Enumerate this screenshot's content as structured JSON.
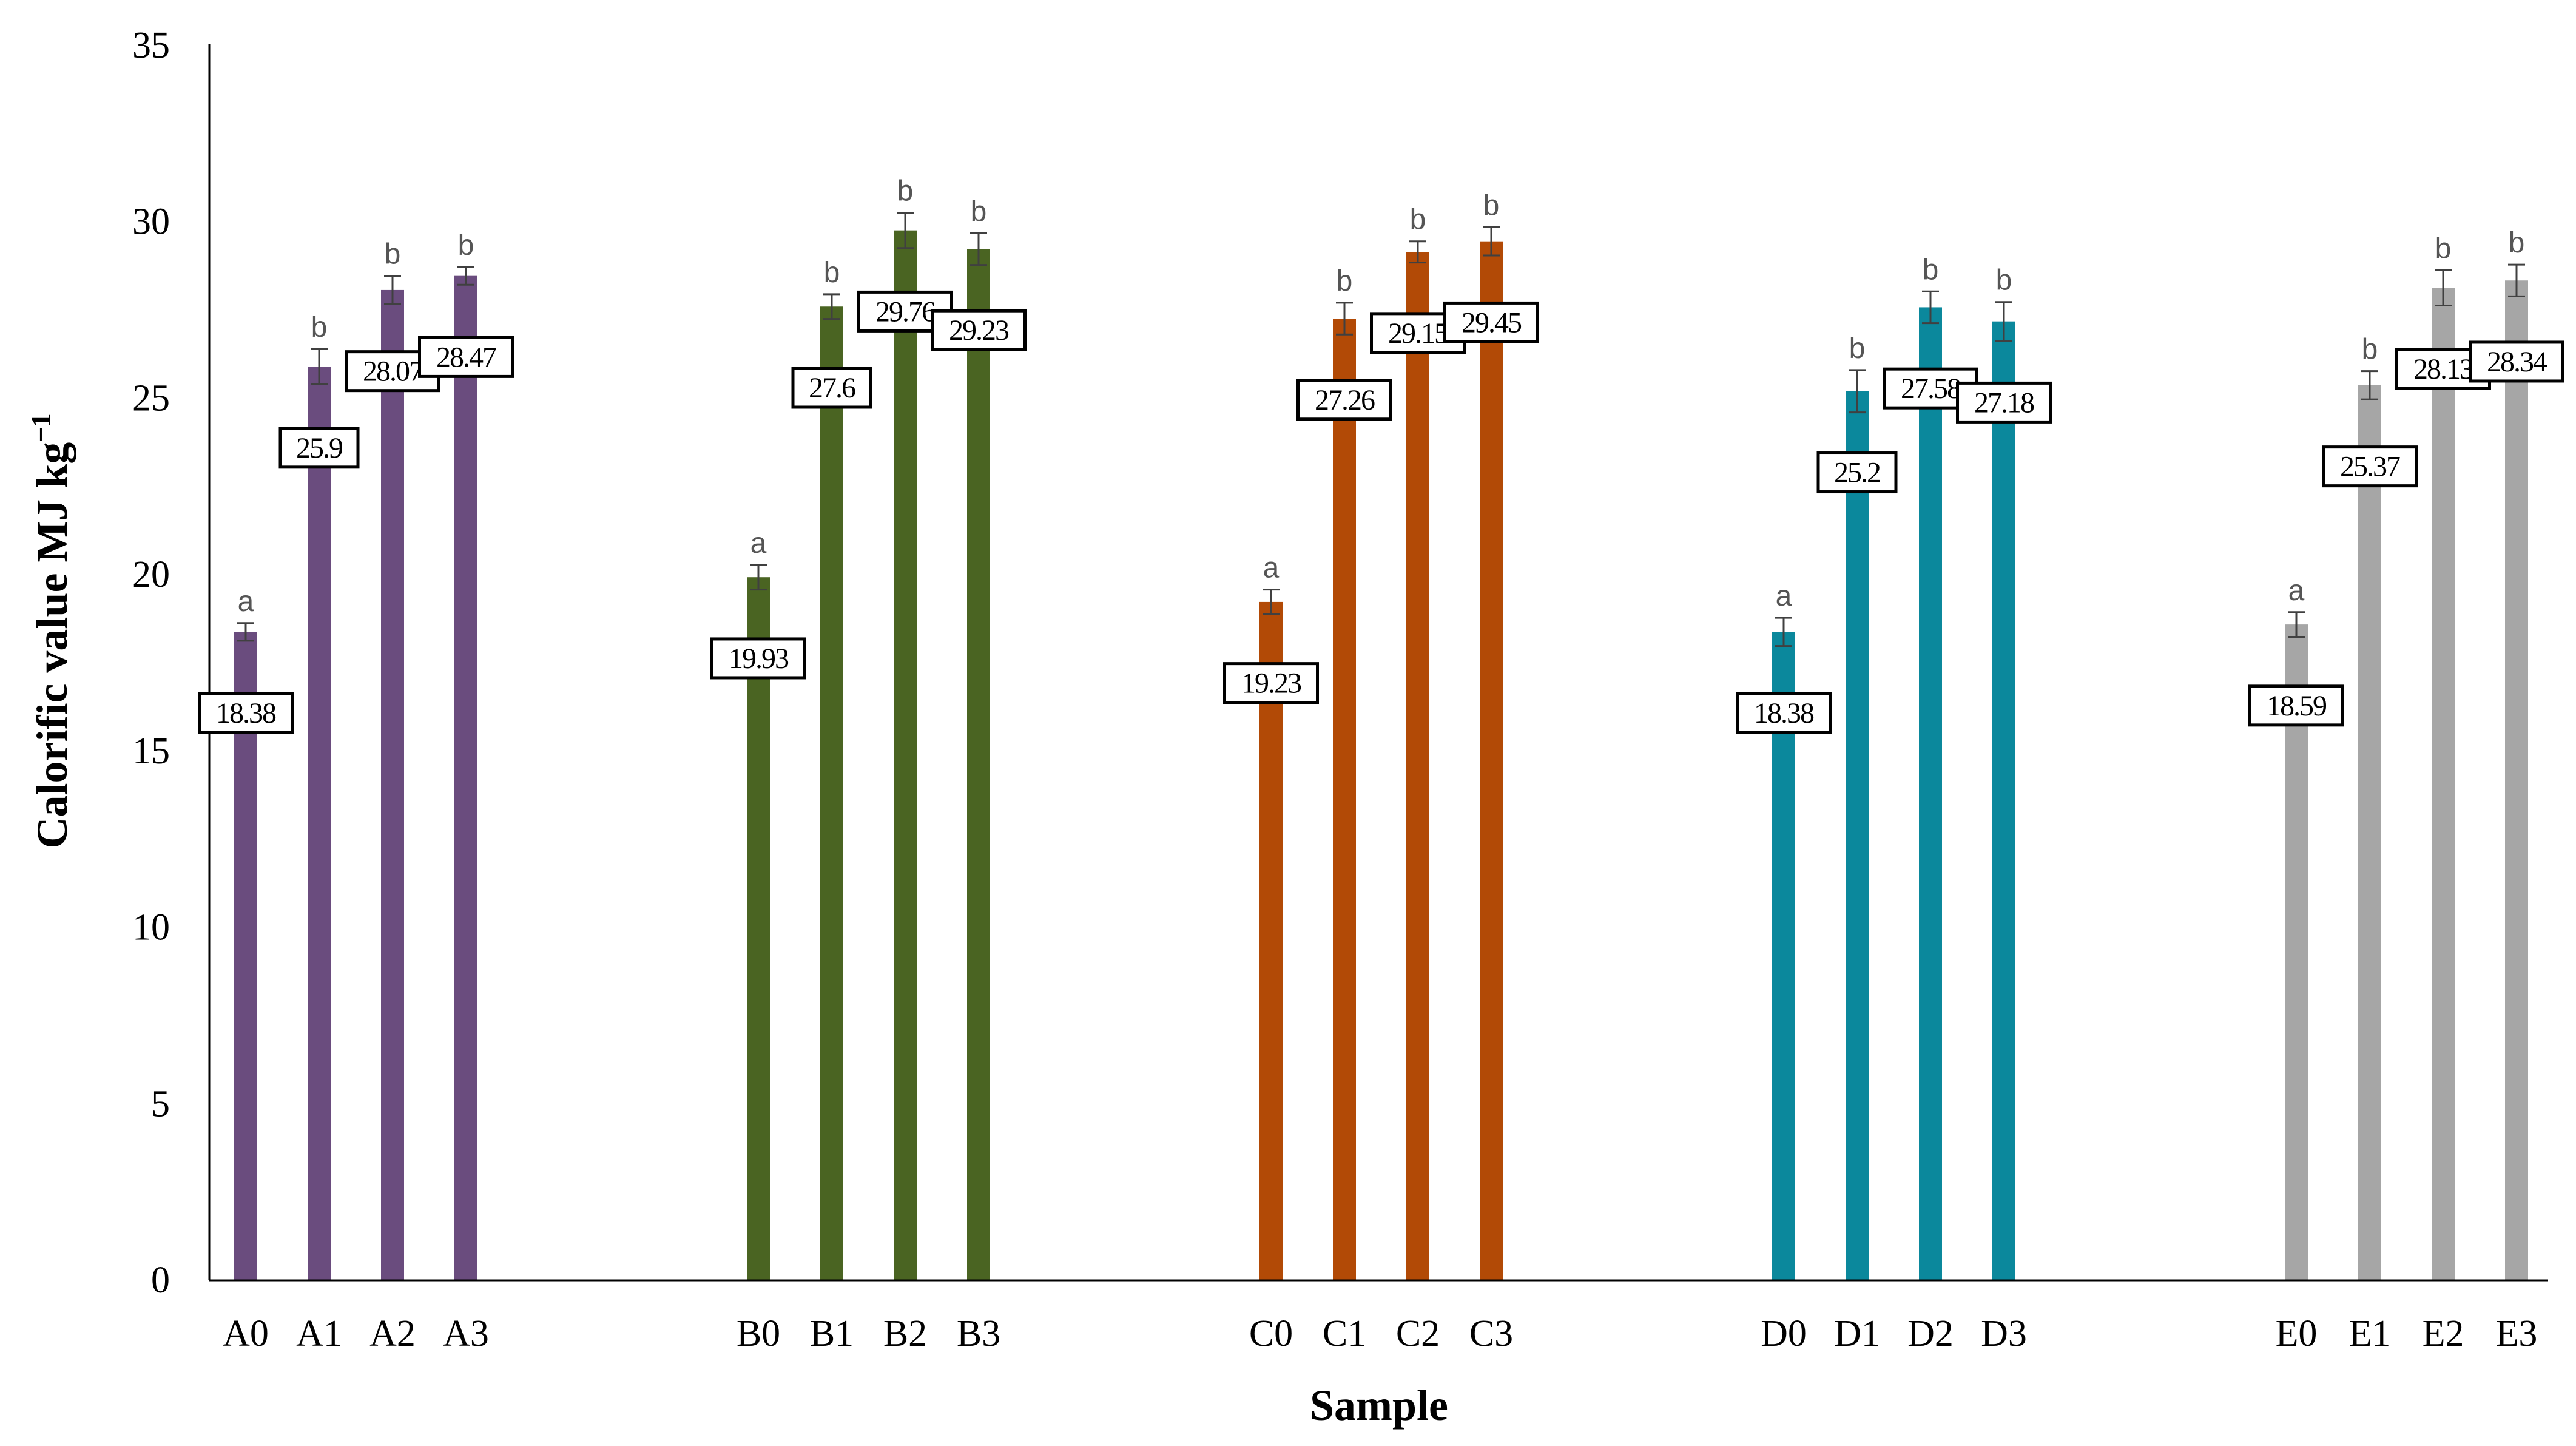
{
  "chart_data": {
    "type": "bar",
    "xlabel": "Sample",
    "ylabel": "Calorific value MJ kg",
    "ylabel_sup": "−1",
    "ylim": [
      0,
      35
    ],
    "yticks": [
      0,
      5,
      10,
      15,
      20,
      25,
      30,
      35
    ],
    "grid": false,
    "legend": "none",
    "groups": [
      {
        "color": "#6A4C7E",
        "bars": [
          {
            "label": "A0",
            "value": 18.38,
            "error": 0.25,
            "sig": "a"
          },
          {
            "label": "A1",
            "value": 25.9,
            "error": 0.5,
            "sig": "b"
          },
          {
            "label": "A2",
            "value": 28.07,
            "error": 0.4,
            "sig": "b"
          },
          {
            "label": "A3",
            "value": 28.47,
            "error": 0.25,
            "sig": "b"
          }
        ]
      },
      {
        "color": "#4A6422",
        "bars": [
          {
            "label": "B0",
            "value": 19.93,
            "error": 0.35,
            "sig": "a"
          },
          {
            "label": "B1",
            "value": 27.6,
            "error": 0.35,
            "sig": "b"
          },
          {
            "label": "B2",
            "value": 29.76,
            "error": 0.5,
            "sig": "b"
          },
          {
            "label": "B3",
            "value": 29.23,
            "error": 0.45,
            "sig": "b"
          }
        ]
      },
      {
        "color": "#B24A06",
        "bars": [
          {
            "label": "C0",
            "value": 19.23,
            "error": 0.35,
            "sig": "a"
          },
          {
            "label": "C1",
            "value": 27.26,
            "error": 0.45,
            "sig": "b"
          },
          {
            "label": "C2",
            "value": 29.15,
            "error": 0.3,
            "sig": "b"
          },
          {
            "label": "C3",
            "value": 29.45,
            "error": 0.4,
            "sig": "b"
          }
        ]
      },
      {
        "color": "#0B889C",
        "bars": [
          {
            "label": "D0",
            "value": 18.38,
            "error": 0.4,
            "sig": "a"
          },
          {
            "label": "D1",
            "value": 25.2,
            "error": 0.6,
            "sig": "b"
          },
          {
            "label": "D2",
            "value": 27.58,
            "error": 0.45,
            "sig": "b"
          },
          {
            "label": "D3",
            "value": 27.18,
            "error": 0.55,
            "sig": "b"
          }
        ]
      },
      {
        "color": "#A6A6A6",
        "bars": [
          {
            "label": "E0",
            "value": 18.59,
            "error": 0.35,
            "sig": "a"
          },
          {
            "label": "E1",
            "value": 25.37,
            "error": 0.4,
            "sig": "b"
          },
          {
            "label": "E2",
            "value": 28.13,
            "error": 0.5,
            "sig": "b"
          },
          {
            "label": "E3",
            "value": 28.34,
            "error": 0.45,
            "sig": "b"
          }
        ]
      }
    ]
  }
}
